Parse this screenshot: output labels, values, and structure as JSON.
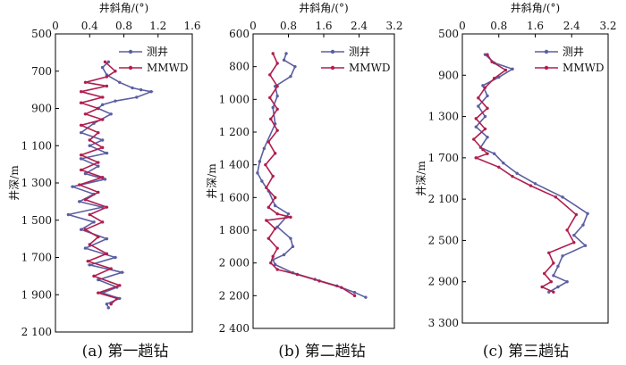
{
  "chart_data": [
    {
      "type": "line",
      "caption": "(a) 第一趟钻",
      "xlabel": "井斜角/(°)",
      "ylabel": "井深/m",
      "xlim": [
        0,
        1.6
      ],
      "xticks": [
        "0",
        "0.4",
        "0.8",
        "1.2",
        "1.6"
      ],
      "ylim": [
        500,
        2100
      ],
      "yticks": [
        "500",
        "700",
        "900",
        "1 100",
        "1 300",
        "1 500",
        "1 700",
        "1 900",
        "2 100"
      ],
      "legend": [
        "测井",
        "MMWD"
      ],
      "legend_position": "top-right",
      "series": [
        {
          "name": "测井",
          "color": "#5b5ea0",
          "x": [
            0.62,
            0.55,
            0.6,
            0.75,
            0.9,
            1.0,
            1.12,
            0.95,
            0.7,
            0.55,
            0.5,
            0.65,
            0.45,
            0.3,
            0.55,
            0.4,
            0.6,
            0.3,
            0.5,
            0.35,
            0.58,
            0.2,
            0.45,
            0.28,
            0.55,
            0.15,
            0.45,
            0.3,
            0.6,
            0.35,
            0.7,
            0.4,
            0.78,
            0.5,
            0.72,
            0.55,
            0.75,
            0.6,
            0.62
          ],
          "y": [
            650,
            680,
            720,
            760,
            790,
            800,
            810,
            840,
            860,
            880,
            900,
            930,
            980,
            1030,
            1070,
            1100,
            1140,
            1170,
            1210,
            1250,
            1280,
            1320,
            1360,
            1400,
            1430,
            1470,
            1510,
            1550,
            1600,
            1650,
            1700,
            1740,
            1780,
            1820,
            1860,
            1890,
            1920,
            1950,
            1970
          ]
        },
        {
          "name": "MMWD",
          "color": "#b01e4e",
          "x": [
            0.58,
            0.7,
            0.6,
            0.35,
            0.6,
            0.3,
            0.55,
            0.3,
            0.5,
            0.35,
            0.55,
            0.3,
            0.5,
            0.4,
            0.55,
            0.3,
            0.5,
            0.3,
            0.55,
            0.28,
            0.5,
            0.35,
            0.6,
            0.4,
            0.55,
            0.35,
            0.5,
            0.4,
            0.6,
            0.38,
            0.65,
            0.45,
            0.75,
            0.5,
            0.72,
            0.65
          ],
          "y": [
            650,
            700,
            730,
            760,
            780,
            810,
            840,
            870,
            900,
            930,
            960,
            990,
            1030,
            1070,
            1110,
            1150,
            1190,
            1230,
            1270,
            1310,
            1350,
            1390,
            1430,
            1470,
            1510,
            1550,
            1590,
            1630,
            1680,
            1720,
            1760,
            1800,
            1850,
            1890,
            1920,
            1950
          ]
        }
      ]
    },
    {
      "type": "line",
      "caption": "(b) 第二趟钻",
      "xlabel": "井斜角/(°)",
      "ylabel": "井深/m",
      "xlim": [
        0,
        3.2
      ],
      "xticks": [
        "0",
        "0.8",
        "1.6",
        "2.4",
        "3.2"
      ],
      "ylim": [
        600,
        2400
      ],
      "yticks": [
        "600",
        "800",
        "1 000",
        "1 200",
        "1 400",
        "1 600",
        "1 800",
        "2 000",
        "2 200",
        "2 400"
      ],
      "legend": [
        "测井",
        "MMWD"
      ],
      "legend_position": "top-right",
      "series": [
        {
          "name": "测井",
          "color": "#5b5ea0",
          "x": [
            0.75,
            0.7,
            0.95,
            0.85,
            0.5,
            0.55,
            0.45,
            0.5,
            0.25,
            0.15,
            0.1,
            0.2,
            0.35,
            0.5,
            0.8,
            0.75,
            0.55,
            0.85,
            0.9,
            0.7,
            0.45,
            0.5,
            0.9,
            1.4,
            1.9,
            2.3,
            2.55
          ],
          "y": [
            720,
            760,
            800,
            860,
            920,
            980,
            1050,
            1150,
            1300,
            1380,
            1450,
            1500,
            1560,
            1650,
            1700,
            1720,
            1780,
            1850,
            1900,
            1950,
            1980,
            2010,
            2060,
            2100,
            2140,
            2180,
            2210
          ]
        },
        {
          "name": "MMWD",
          "color": "#b01e4e",
          "x": [
            0.45,
            0.55,
            0.38,
            0.55,
            0.38,
            0.55,
            0.4,
            0.55,
            0.35,
            0.5,
            0.28,
            0.45,
            0.3,
            0.5,
            0.35,
            0.55,
            0.85,
            0.3,
            0.5,
            0.35,
            0.55,
            0.45,
            0.4,
            0.55,
            1.0,
            1.5,
            2.0,
            2.3
          ],
          "y": [
            720,
            780,
            850,
            920,
            990,
            1060,
            1120,
            1190,
            1260,
            1330,
            1400,
            1470,
            1540,
            1600,
            1660,
            1700,
            1720,
            1740,
            1790,
            1850,
            1910,
            1960,
            2000,
            2040,
            2070,
            2110,
            2150,
            2200
          ]
        }
      ]
    },
    {
      "type": "line",
      "caption": "(c) 第三趟钻",
      "xlabel": "井斜角/(°)",
      "ylabel": "井深/m",
      "xlim": [
        0,
        3.2
      ],
      "xticks": [
        "0",
        "0.8",
        "1.6",
        "2.4",
        "3.2"
      ],
      "ylim": [
        500,
        3300
      ],
      "yticks": [
        "500",
        "900",
        "1 300",
        "1 700",
        "2 100",
        "2 500",
        "2 900",
        "3 300"
      ],
      "legend": [
        "测井",
        "MMWD"
      ],
      "legend_position": "top-right",
      "series": [
        {
          "name": "测井",
          "color": "#5b5ea0",
          "x": [
            0.5,
            0.7,
            1.1,
            0.8,
            0.45,
            0.55,
            0.35,
            0.5,
            0.3,
            0.55,
            0.4,
            0.7,
            0.9,
            1.2,
            1.6,
            2.2,
            2.75,
            2.65,
            2.45,
            2.7,
            2.2,
            2.1,
            2.0,
            2.3,
            2.1,
            1.9
          ],
          "y": [
            700,
            780,
            840,
            920,
            1000,
            1100,
            1200,
            1300,
            1400,
            1500,
            1600,
            1660,
            1750,
            1850,
            1950,
            2080,
            2240,
            2350,
            2450,
            2550,
            2650,
            2750,
            2840,
            2900,
            2950,
            3000
          ]
        },
        {
          "name": "MMWD",
          "color": "#b01e4e",
          "x": [
            0.55,
            0.65,
            0.95,
            0.7,
            0.5,
            0.35,
            0.55,
            0.3,
            0.5,
            0.25,
            0.45,
            0.55,
            0.3,
            0.8,
            1.1,
            1.5,
            2.05,
            2.5,
            2.3,
            2.45,
            1.9,
            2.0,
            1.8,
            1.95,
            1.75,
            2.0
          ],
          "y": [
            700,
            770,
            850,
            930,
            1020,
            1120,
            1220,
            1320,
            1420,
            1520,
            1620,
            1660,
            1700,
            1790,
            1880,
            1970,
            2080,
            2250,
            2400,
            2520,
            2620,
            2720,
            2820,
            2900,
            2950,
            3000
          ]
        }
      ]
    }
  ]
}
